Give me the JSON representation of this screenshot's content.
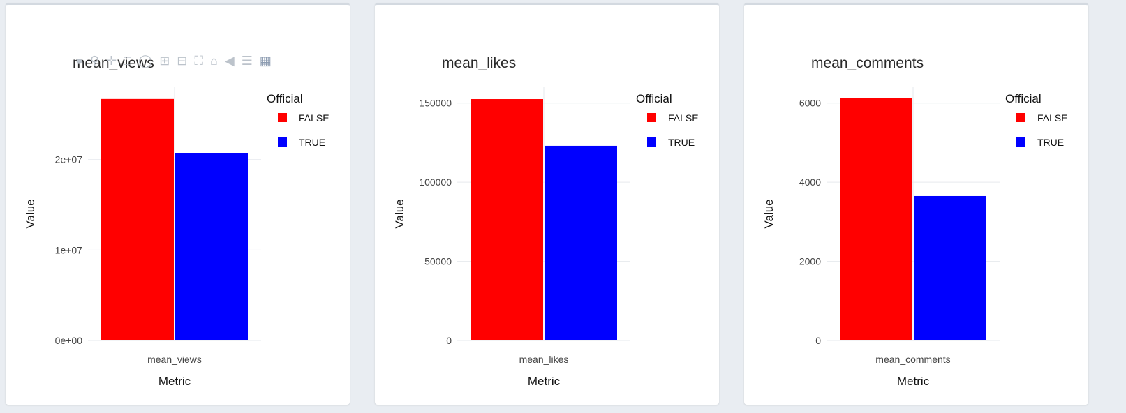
{
  "colors": {
    "FALSE": "#ff0000",
    "TRUE": "#0000ff",
    "grid": "#e6e9ed",
    "axis_text": "#444444",
    "title_text": "#2a2a2a"
  },
  "modebar": {
    "icons": [
      "camera-icon",
      "zoom-icon",
      "pan-icon",
      "box-select-icon",
      "lasso-select-icon",
      "zoom-in-icon",
      "zoom-out-icon",
      "autoscale-icon",
      "reset-axes-icon",
      "hover-closest-icon",
      "hover-compare-icon",
      "plotly-logo-icon"
    ]
  },
  "chart_data": [
    {
      "type": "bar",
      "title": "mean_views",
      "xlabel": "Metric",
      "ylabel": "Value",
      "categories": [
        "mean_views"
      ],
      "legend_title": "Official",
      "series": [
        {
          "name": "FALSE",
          "values": [
            26700000
          ]
        },
        {
          "name": "TRUE",
          "values": [
            20700000
          ]
        }
      ],
      "ylim": [
        0,
        28000000
      ],
      "yticks": [
        0,
        10000000,
        20000000
      ],
      "ytick_labels": [
        "0e+00",
        "1e+07",
        "2e+07"
      ],
      "grid": true,
      "legend_position": "top-right"
    },
    {
      "type": "bar",
      "title": "mean_likes",
      "xlabel": "Metric",
      "ylabel": "Value",
      "categories": [
        "mean_likes"
      ],
      "legend_title": "Official",
      "series": [
        {
          "name": "FALSE",
          "values": [
            152500
          ]
        },
        {
          "name": "TRUE",
          "values": [
            123000
          ]
        }
      ],
      "ylim": [
        0,
        160000
      ],
      "yticks": [
        0,
        50000,
        100000,
        150000
      ],
      "ytick_labels": [
        "0",
        "50000",
        "100000",
        "150000"
      ],
      "grid": true,
      "legend_position": "top-right"
    },
    {
      "type": "bar",
      "title": "mean_comments",
      "xlabel": "Metric",
      "ylabel": "Value",
      "categories": [
        "mean_comments"
      ],
      "legend_title": "Official",
      "series": [
        {
          "name": "FALSE",
          "values": [
            6120
          ]
        },
        {
          "name": "TRUE",
          "values": [
            3650
          ]
        }
      ],
      "ylim": [
        0,
        6400
      ],
      "yticks": [
        0,
        2000,
        4000,
        6000
      ],
      "ytick_labels": [
        "0",
        "2000",
        "4000",
        "6000"
      ],
      "grid": true,
      "legend_position": "top-right"
    }
  ]
}
